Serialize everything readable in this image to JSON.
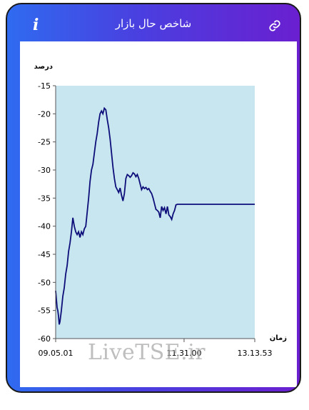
{
  "header": {
    "title": "شاخص حال بازار",
    "info_icon": "i",
    "left_icon_name": "info-icon",
    "right_icon_name": "link-icon"
  },
  "watermark": "LiveTSE.ir",
  "colors": {
    "gradient_start": "#2f6bf0",
    "gradient_end": "#6a1fd0",
    "plot_fill": "#c8e6ef",
    "line": "#0d0d7a"
  },
  "chart_data": {
    "type": "line",
    "ylabel": "درصد",
    "xlabel": "زمان",
    "ylim": [
      -60,
      -15
    ],
    "yticks": [
      -15,
      -20,
      -25,
      -30,
      -35,
      -40,
      -45,
      -50,
      -55,
      -60
    ],
    "x_tick_labels": [
      "09.05.01",
      "11.31.00",
      "13.13.53"
    ],
    "series": [
      {
        "x": [
          0,
          1,
          2,
          3,
          4,
          5,
          6,
          8,
          10,
          12,
          14,
          16,
          18,
          20,
          22,
          24,
          26,
          28,
          30,
          32,
          34,
          36,
          38,
          40,
          42,
          44,
          46,
          48,
          50,
          52,
          54,
          56,
          58,
          60,
          62,
          64,
          66,
          68,
          70,
          72,
          74,
          76,
          78,
          80,
          82,
          84,
          86,
          88,
          90,
          92,
          94,
          96,
          98,
          100,
          102,
          104,
          106,
          108,
          110,
          112,
          114,
          116,
          118,
          120,
          122,
          124,
          126,
          128,
          130,
          132,
          134,
          136,
          138,
          140,
          142,
          144,
          146,
          148,
          150,
          152,
          154,
          156,
          158,
          160,
          162,
          164,
          166,
          168,
          170,
          172,
          174,
          176,
          178,
          180,
          182,
          184,
          186,
          188,
          190,
          192,
          194,
          196,
          198,
          200,
          202,
          204,
          206,
          208,
          210,
          212,
          214,
          216,
          218,
          220,
          222,
          224,
          226,
          228,
          230,
          232,
          234,
          236,
          240,
          250,
          260,
          270,
          278
        ],
        "y": [
          -51.5,
          -53,
          -54.5,
          -55,
          -56,
          -57.5,
          -57,
          -55,
          -52.5,
          -51,
          -48.5,
          -47,
          -44.5,
          -43,
          -41,
          -38.5,
          -40,
          -41,
          -41.5,
          -41,
          -42,
          -41,
          -41.5,
          -40.5,
          -40,
          -37.5,
          -35,
          -32,
          -30,
          -29,
          -27,
          -25,
          -23.5,
          -21.5,
          -20,
          -19.5,
          -20,
          -19,
          -19.3,
          -21,
          -22.5,
          -24.5,
          -27,
          -29.5,
          -31.5,
          -33,
          -33.5,
          -34,
          -33.2,
          -34.5,
          -35.5,
          -34.2,
          -31.5,
          -30.8,
          -31,
          -31.3,
          -31,
          -30.5,
          -30.7,
          -31.2,
          -30.8,
          -31.5,
          -32.5,
          -33.5,
          -33,
          -33.3,
          -33.1,
          -33.5,
          -33.3,
          -33.8,
          -34.2,
          -35,
          -36,
          -37,
          -37.2,
          -37.5,
          -38.5,
          -36.5,
          -37.2,
          -36.7,
          -37.8,
          -36.5,
          -38,
          -38.3,
          -38.8,
          -37.8,
          -37.2,
          -36.2,
          -36.1,
          -36.1,
          -36.1,
          -36.1,
          -36.1,
          -36.1,
          -36.1,
          -36.1,
          -36.1,
          -36.1,
          -36.1,
          -36.1,
          -36.1,
          -36.1,
          -36.1,
          -36.1,
          -36.1,
          -36.1,
          -36.1,
          -36.1,
          -36.1,
          -36.1,
          -36.1,
          -36.1,
          -36.1,
          -36.1,
          -36.1,
          -36.1,
          -36.1,
          -36.1,
          -36.1,
          -36.1,
          -36.1,
          -36.1,
          -36.1,
          -36.1,
          -36.1,
          -36.1,
          -36.1
        ]
      }
    ],
    "grid": false
  }
}
